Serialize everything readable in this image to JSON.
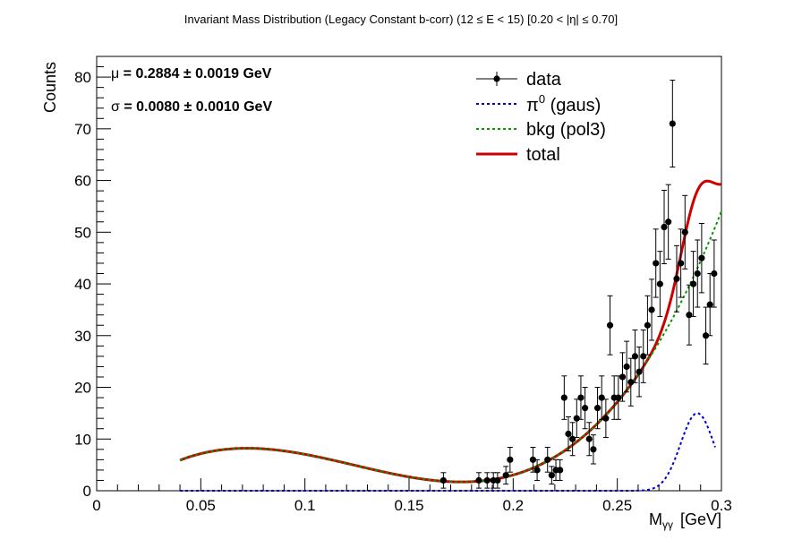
{
  "chart_data": {
    "type": "scatter",
    "title": "Invariant Mass Distribution (Legacy Constant b-corr)   (12 ≤ E < 15)   [0.20 < |η| ≤ 0.70]",
    "xlabel": "Mγγ  [GeV]",
    "xlabel_main": "M",
    "xlabel_sub": "γγ",
    "xlabel_unit": "[GeV]",
    "ylabel": "Counts",
    "xlim": [
      0,
      0.3
    ],
    "ylim": [
      0,
      84
    ],
    "x_ticks": [
      0,
      0.05,
      0.1,
      0.15,
      0.2,
      0.25,
      0.3
    ],
    "x_tick_labels": [
      "0",
      "0.05",
      "0.1",
      "0.15",
      "0.2",
      "0.25",
      "0.3"
    ],
    "y_ticks": [
      0,
      10,
      20,
      30,
      40,
      50,
      60,
      70,
      80
    ],
    "y_tick_labels": [
      "0",
      "10",
      "20",
      "30",
      "40",
      "50",
      "60",
      "70",
      "80"
    ],
    "stats": [
      {
        "symbol": "μ",
        "text": " = 0.2884  ± 0.0019 GeV"
      },
      {
        "symbol": "σ",
        "text": " = 0.0080  ± 0.0010 GeV"
      }
    ],
    "legend": [
      {
        "label": "data",
        "style": "marker",
        "color": "#000000"
      },
      {
        "label": "π",
        "sup": "0",
        "suffix": " (gaus)",
        "style": "dotted",
        "color": "#0000cc"
      },
      {
        "label": "bkg (pol3)",
        "style": "dotted",
        "color": "#009900"
      },
      {
        "label": "total",
        "style": "solid",
        "color": "#cc0000"
      }
    ],
    "data_points": {
      "x": [
        0.1665,
        0.1835,
        0.1875,
        0.1905,
        0.1925,
        0.1965,
        0.1985,
        0.2095,
        0.2115,
        0.2165,
        0.2185,
        0.2205,
        0.2225,
        0.2245,
        0.2265,
        0.2285,
        0.2305,
        0.2325,
        0.2345,
        0.2365,
        0.2385,
        0.2405,
        0.2425,
        0.2445,
        0.2465,
        0.2485,
        0.2505,
        0.2525,
        0.2545,
        0.2565,
        0.2585,
        0.2605,
        0.2625,
        0.2645,
        0.2665,
        0.2685,
        0.2705,
        0.2725,
        0.2745,
        0.2765,
        0.2785,
        0.2805,
        0.2825,
        0.2845,
        0.2865,
        0.2885,
        0.2905,
        0.2925,
        0.2945,
        0.2965
      ],
      "y": [
        2,
        2,
        2,
        2,
        2,
        3,
        6,
        6,
        4,
        6,
        3,
        4,
        4,
        18,
        11,
        10,
        14,
        18,
        16,
        10,
        8,
        16,
        18,
        14,
        32,
        18,
        18,
        22,
        24,
        21,
        26,
        23,
        26,
        32,
        35,
        44,
        40,
        51,
        52,
        71,
        41,
        44,
        50,
        34,
        40,
        42,
        45,
        30,
        36,
        42
      ],
      "err": [
        1.5,
        1.5,
        1.5,
        1.5,
        1.5,
        1.7,
        2.4,
        2.4,
        2,
        2.4,
        1.7,
        2,
        2,
        4.2,
        3.3,
        3.2,
        3.7,
        4.2,
        4,
        3.2,
        2.8,
        4,
        4.2,
        3.7,
        5.7,
        4.2,
        4.2,
        4.7,
        4.9,
        4.6,
        5.1,
        4.8,
        5.1,
        5.7,
        5.9,
        6.6,
        6.3,
        7.1,
        7.2,
        8.4,
        6.4,
        6.6,
        7.1,
        5.8,
        6.3,
        6.5,
        6.7,
        5.5,
        6,
        6.5
      ]
    },
    "function_range": [
      0.04,
      0.3
    ],
    "signal_gaus": {
      "amplitude": 15,
      "mean": 0.2884,
      "sigma": 0.008
    },
    "bkg_pol3": {
      "x0": 0.175,
      "y0": 1.7
    }
  }
}
